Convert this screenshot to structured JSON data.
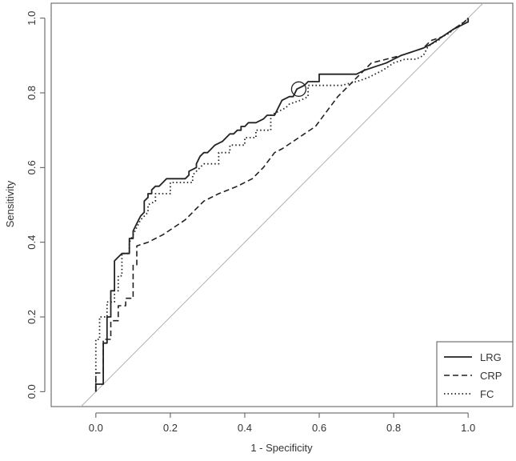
{
  "chart_data": {
    "type": "line",
    "title": "",
    "xlabel": "1 - Specificity",
    "ylabel": "Sensitivity",
    "xlim": [
      -0.12,
      1.12
    ],
    "ylim": [
      -0.04,
      1.04
    ],
    "x_ticks": [
      "0.0",
      "0.2",
      "0.4",
      "0.6",
      "0.8",
      "1.0"
    ],
    "y_ticks": [
      "0.0",
      "0.2",
      "0.4",
      "0.6",
      "0.8",
      "1.0"
    ],
    "grid": false,
    "legend_position": "bottom-right",
    "reference_line": {
      "x": [
        0,
        1
      ],
      "y": [
        0,
        1
      ],
      "color": "#b0b0b0"
    },
    "highlight_point": {
      "x": 0.545,
      "y": 0.81,
      "marker": "circle"
    },
    "series": [
      {
        "name": "LRG",
        "style": "solid",
        "x": [
          0.0,
          0.0,
          0.02,
          0.02,
          0.03,
          0.03,
          0.04,
          0.04,
          0.05,
          0.05,
          0.06,
          0.07,
          0.09,
          0.09,
          0.1,
          0.1,
          0.11,
          0.12,
          0.13,
          0.13,
          0.14,
          0.14,
          0.15,
          0.15,
          0.16,
          0.17,
          0.18,
          0.19,
          0.2,
          0.24,
          0.25,
          0.25,
          0.27,
          0.27,
          0.28,
          0.29,
          0.3,
          0.31,
          0.32,
          0.34,
          0.35,
          0.36,
          0.37,
          0.38,
          0.39,
          0.39,
          0.4,
          0.41,
          0.43,
          0.45,
          0.46,
          0.48,
          0.49,
          0.5,
          0.52,
          0.53,
          0.54,
          0.56,
          0.57,
          0.58,
          0.6,
          0.6,
          0.63,
          0.7,
          0.72,
          0.75,
          0.78,
          0.8,
          0.82,
          0.85,
          0.88,
          0.9,
          0.93,
          0.96,
          0.98,
          1.0,
          1.0
        ],
        "y": [
          0.0,
          0.02,
          0.02,
          0.13,
          0.13,
          0.2,
          0.2,
          0.27,
          0.27,
          0.35,
          0.36,
          0.37,
          0.37,
          0.41,
          0.41,
          0.43,
          0.45,
          0.47,
          0.48,
          0.51,
          0.52,
          0.53,
          0.53,
          0.54,
          0.55,
          0.55,
          0.56,
          0.57,
          0.57,
          0.57,
          0.58,
          0.59,
          0.6,
          0.61,
          0.63,
          0.64,
          0.64,
          0.65,
          0.66,
          0.67,
          0.68,
          0.69,
          0.69,
          0.7,
          0.7,
          0.71,
          0.71,
          0.72,
          0.72,
          0.73,
          0.74,
          0.74,
          0.76,
          0.78,
          0.79,
          0.79,
          0.81,
          0.82,
          0.83,
          0.83,
          0.83,
          0.85,
          0.85,
          0.85,
          0.86,
          0.87,
          0.88,
          0.89,
          0.9,
          0.91,
          0.92,
          0.93,
          0.95,
          0.97,
          0.98,
          0.99,
          1.0
        ]
      },
      {
        "name": "CRP",
        "style": "dashed",
        "x": [
          0.0,
          0.0,
          0.02,
          0.02,
          0.04,
          0.04,
          0.06,
          0.06,
          0.08,
          0.08,
          0.1,
          0.1,
          0.11,
          0.11,
          0.14,
          0.18,
          0.21,
          0.24,
          0.26,
          0.29,
          0.33,
          0.38,
          0.42,
          0.45,
          0.48,
          0.5,
          0.53,
          0.56,
          0.59,
          0.62,
          0.65,
          0.68,
          0.71,
          0.74,
          0.78,
          0.82,
          0.85,
          0.88,
          0.9,
          0.93,
          0.96,
          0.99,
          1.0
        ],
        "y": [
          0.0,
          0.05,
          0.05,
          0.14,
          0.14,
          0.19,
          0.19,
          0.23,
          0.23,
          0.25,
          0.25,
          0.34,
          0.34,
          0.39,
          0.4,
          0.42,
          0.44,
          0.46,
          0.48,
          0.51,
          0.53,
          0.55,
          0.57,
          0.6,
          0.64,
          0.65,
          0.67,
          0.69,
          0.71,
          0.75,
          0.79,
          0.82,
          0.85,
          0.88,
          0.89,
          0.9,
          0.91,
          0.92,
          0.94,
          0.95,
          0.97,
          0.99,
          1.0
        ]
      },
      {
        "name": "FC",
        "style": "dotted",
        "x": [
          0.0,
          0.0,
          0.01,
          0.01,
          0.03,
          0.03,
          0.05,
          0.05,
          0.06,
          0.06,
          0.07,
          0.07,
          0.09,
          0.09,
          0.1,
          0.11,
          0.12,
          0.14,
          0.14,
          0.16,
          0.16,
          0.2,
          0.2,
          0.26,
          0.26,
          0.28,
          0.29,
          0.33,
          0.33,
          0.36,
          0.36,
          0.4,
          0.4,
          0.43,
          0.43,
          0.47,
          0.47,
          0.51,
          0.52,
          0.55,
          0.57,
          0.57,
          0.63,
          0.66,
          0.7,
          0.73,
          0.77,
          0.8,
          0.83,
          0.86,
          0.88,
          0.89,
          0.9,
          0.92,
          0.93,
          0.95,
          0.96,
          0.99,
          1.0
        ],
        "y": [
          0.0,
          0.14,
          0.14,
          0.2,
          0.2,
          0.24,
          0.24,
          0.27,
          0.27,
          0.31,
          0.31,
          0.37,
          0.37,
          0.4,
          0.42,
          0.44,
          0.46,
          0.48,
          0.5,
          0.51,
          0.53,
          0.53,
          0.56,
          0.56,
          0.58,
          0.6,
          0.61,
          0.61,
          0.64,
          0.64,
          0.66,
          0.66,
          0.68,
          0.68,
          0.7,
          0.7,
          0.74,
          0.76,
          0.77,
          0.78,
          0.79,
          0.82,
          0.82,
          0.82,
          0.83,
          0.84,
          0.86,
          0.88,
          0.89,
          0.89,
          0.9,
          0.92,
          0.93,
          0.94,
          0.95,
          0.96,
          0.97,
          0.99,
          1.0
        ]
      }
    ]
  }
}
